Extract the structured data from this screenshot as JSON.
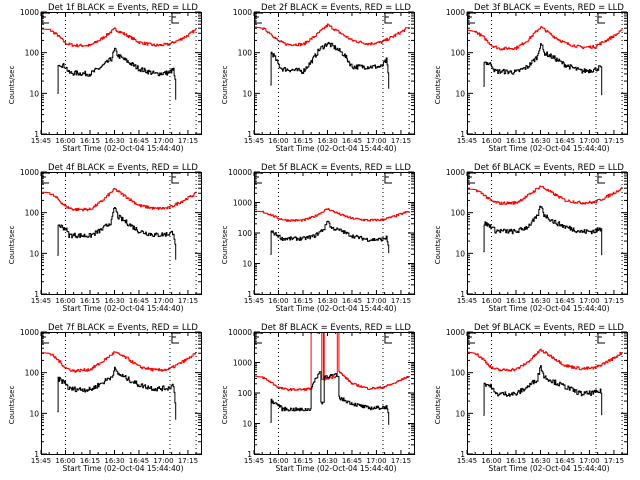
{
  "figure": {
    "xlabel": "Start Time (02-Oct-04 15:44:40)",
    "ylabel": "Counts/sec"
  },
  "chart_data": [
    {
      "type": "line",
      "title": "Det 1f BLACK = Events, RED = LLD",
      "xlabel": "Start Time (02-Oct-04 15:44:40)",
      "ylabel": "Counts/sec",
      "xlim": [
        "15:45",
        "17:23"
      ],
      "ylim": [
        1,
        1000
      ],
      "yscale": "log",
      "xticks": [
        "15:45",
        "16:00",
        "16:15",
        "16:30",
        "16:45",
        "17:00",
        "17:15"
      ],
      "yticks": [
        "1",
        "10",
        "100",
        "1000"
      ],
      "dotted_vlines": [
        "16:00",
        "17:04",
        "17:20"
      ],
      "series": [
        {
          "name": "LLD",
          "color": "#ff0000",
          "x": [
            "15:45",
            "15:50",
            "15:55",
            "16:00",
            "16:05",
            "16:15",
            "16:22",
            "16:30",
            "16:38",
            "16:45",
            "16:55",
            "17:03",
            "17:10",
            "17:15",
            "17:20"
          ],
          "values": [
            380,
            370,
            270,
            170,
            150,
            150,
            220,
            380,
            260,
            180,
            150,
            160,
            210,
            270,
            370
          ]
        },
        {
          "name": "Events",
          "color": "#000000",
          "x": [
            "15:55",
            "15:55.5",
            "16:00",
            "16:02",
            "16:15",
            "16:22",
            "16:28",
            "16:30",
            "16:32",
            "16:38",
            "16:45",
            "16:55",
            "17:03",
            "17:06",
            "17:07",
            "17:07.5"
          ],
          "values": [
            10,
            55,
            45,
            32,
            30,
            45,
            70,
            120,
            85,
            60,
            40,
            30,
            32,
            38,
            20,
            7
          ]
        }
      ]
    },
    {
      "type": "line",
      "title": "Det 2f BLACK = Events, RED = LLD",
      "xlabel": "Start Time (02-Oct-04 15:44:40)",
      "ylabel": "Counts/sec",
      "xlim": [
        "15:45",
        "17:23"
      ],
      "ylim": [
        1,
        1000
      ],
      "yscale": "log",
      "xticks": [
        "15:45",
        "16:00",
        "16:15",
        "16:30",
        "16:45",
        "17:00",
        "17:15"
      ],
      "yticks": [
        "1",
        "10",
        "100",
        "1000"
      ],
      "dotted_vlines": [
        "16:00",
        "17:04",
        "17:20"
      ],
      "series": [
        {
          "name": "LLD",
          "color": "#ff0000",
          "x": [
            "15:45",
            "15:50",
            "15:55",
            "16:00",
            "16:05",
            "16:15",
            "16:22",
            "16:30",
            "16:38",
            "16:45",
            "16:55",
            "17:03",
            "17:10",
            "17:15",
            "17:20"
          ],
          "values": [
            430,
            400,
            300,
            190,
            160,
            160,
            250,
            480,
            300,
            200,
            165,
            180,
            250,
            320,
            430
          ]
        },
        {
          "name": "Events",
          "color": "#000000",
          "x": [
            "15:55",
            "15:55.5",
            "15:57",
            "16:00",
            "16:02",
            "16:15",
            "16:20",
            "16:25",
            "16:30",
            "16:35",
            "16:40",
            "16:45",
            "16:55",
            "17:03",
            "17:06",
            "17:07",
            "17:07.5"
          ],
          "values": [
            16,
            100,
            85,
            50,
            40,
            35,
            60,
            120,
            170,
            130,
            90,
            45,
            45,
            45,
            65,
            30,
            13
          ]
        }
      ]
    },
    {
      "type": "line",
      "title": "Det 3f BLACK = Events, RED = LLD",
      "xlabel": "Start Time (02-Oct-04 15:44:40)",
      "ylabel": "Counts/sec",
      "xlim": [
        "15:45",
        "17:23"
      ],
      "ylim": [
        1,
        1000
      ],
      "yscale": "log",
      "xticks": [
        "15:45",
        "16:00",
        "16:15",
        "16:30",
        "16:45",
        "17:00",
        "17:15"
      ],
      "yticks": [
        "1",
        "10",
        "100",
        "1000"
      ],
      "dotted_vlines": [
        "16:00",
        "17:04",
        "17:20"
      ],
      "series": [
        {
          "name": "LLD",
          "color": "#ff0000",
          "x": [
            "15:45",
            "15:50",
            "15:55",
            "16:00",
            "16:05",
            "16:15",
            "16:22",
            "16:30",
            "16:38",
            "16:45",
            "16:55",
            "17:03",
            "17:10",
            "17:15",
            "17:20"
          ],
          "values": [
            360,
            330,
            240,
            150,
            125,
            130,
            200,
            430,
            250,
            170,
            135,
            140,
            200,
            260,
            350
          ]
        },
        {
          "name": "Events",
          "color": "#000000",
          "x": [
            "15:55",
            "15:55.5",
            "16:00",
            "16:02",
            "16:15",
            "16:22",
            "16:28",
            "16:30",
            "16:32",
            "16:38",
            "16:45",
            "16:55",
            "17:03",
            "17:07",
            "17:07.5"
          ],
          "values": [
            15,
            60,
            50,
            35,
            33,
            45,
            80,
            180,
            100,
            75,
            50,
            35,
            38,
            45,
            9
          ]
        }
      ]
    },
    {
      "type": "line",
      "title": "Det 4f BLACK = Events, RED = LLD",
      "xlabel": "Start Time (02-Oct-04 15:44:40)",
      "ylabel": "Counts/sec",
      "xlim": [
        "15:45",
        "17:23"
      ],
      "ylim": [
        1,
        1000
      ],
      "yscale": "log",
      "xticks": [
        "15:45",
        "16:00",
        "16:15",
        "16:30",
        "16:45",
        "17:00",
        "17:15"
      ],
      "yticks": [
        "1",
        "10",
        "100",
        "1000"
      ],
      "dotted_vlines": [
        "16:00",
        "17:04",
        "17:20"
      ],
      "series": [
        {
          "name": "LLD",
          "color": "#ff0000",
          "x": [
            "15:45",
            "15:50",
            "15:55",
            "16:00",
            "16:05",
            "16:15",
            "16:22",
            "16:30",
            "16:38",
            "16:45",
            "16:55",
            "17:03",
            "17:10",
            "17:15",
            "17:20"
          ],
          "values": [
            320,
            310,
            220,
            140,
            120,
            120,
            190,
            380,
            230,
            150,
            125,
            130,
            180,
            230,
            300
          ]
        },
        {
          "name": "Events",
          "color": "#000000",
          "x": [
            "15:55",
            "15:55.5",
            "16:00",
            "16:02",
            "16:15",
            "16:22",
            "16:28",
            "16:30",
            "16:32",
            "16:38",
            "16:45",
            "16:55",
            "17:03",
            "17:06",
            "17:07",
            "17:07.5"
          ],
          "values": [
            9,
            50,
            40,
            28,
            27,
            38,
            60,
            140,
            80,
            55,
            35,
            28,
            30,
            33,
            18,
            7
          ]
        }
      ]
    },
    {
      "type": "line",
      "title": "Det 5f BLACK = Events, RED = LLD",
      "xlabel": "Start Time (02-Oct-04 15:44:40)",
      "ylabel": "Counts/sec",
      "xlim": [
        "15:45",
        "17:23"
      ],
      "ylim": [
        1,
        10000
      ],
      "yscale": "log",
      "xticks": [
        "15:45",
        "16:00",
        "16:15",
        "16:30",
        "16:45",
        "17:00",
        "17:15"
      ],
      "yticks": [
        "1",
        "10",
        "100",
        "1000",
        "10000"
      ],
      "dotted_vlines": [
        "16:00",
        "17:04",
        "17:20"
      ],
      "series": [
        {
          "name": "LLD",
          "color": "#ff0000",
          "x": [
            "15:45",
            "15:50",
            "15:55",
            "16:00",
            "16:05",
            "16:15",
            "16:22",
            "16:30",
            "16:38",
            "16:45",
            "16:55",
            "17:03",
            "17:10",
            "17:15",
            "17:20"
          ],
          "values": [
            520,
            500,
            400,
            300,
            260,
            260,
            350,
            620,
            400,
            300,
            260,
            270,
            340,
            420,
            520
          ]
        },
        {
          "name": "Events",
          "color": "#000000",
          "x": [
            "15:55",
            "15:55.5",
            "16:00",
            "16:02",
            "16:15",
            "16:22",
            "16:28",
            "16:30",
            "16:32",
            "16:38",
            "16:45",
            "16:55",
            "17:03",
            "17:06",
            "17:07",
            "17:07.5"
          ],
          "values": [
            20,
            110,
            80,
            65,
            65,
            80,
            140,
            270,
            150,
            120,
            80,
            60,
            62,
            70,
            40,
            22
          ]
        }
      ]
    },
    {
      "type": "line",
      "title": "Det 6f BLACK = Events, RED = LLD",
      "xlabel": "Start Time (02-Oct-04 15:44:40)",
      "ylabel": "Counts/sec",
      "xlim": [
        "15:45",
        "17:23"
      ],
      "ylim": [
        1,
        1000
      ],
      "yscale": "log",
      "xticks": [
        "15:45",
        "16:00",
        "16:15",
        "16:30",
        "16:45",
        "17:00",
        "17:15"
      ],
      "yticks": [
        "1",
        "10",
        "100",
        "1000"
      ],
      "dotted_vlines": [
        "16:00",
        "17:04",
        "17:20"
      ],
      "series": [
        {
          "name": "LLD",
          "color": "#ff0000",
          "x": [
            "15:45",
            "15:50",
            "15:55",
            "16:00",
            "16:05",
            "16:15",
            "16:22",
            "16:30",
            "16:38",
            "16:45",
            "16:55",
            "17:03",
            "17:10",
            "17:15",
            "17:20"
          ],
          "values": [
            380,
            370,
            280,
            190,
            170,
            175,
            260,
            450,
            290,
            200,
            175,
            180,
            240,
            310,
            400
          ]
        },
        {
          "name": "Events",
          "color": "#000000",
          "x": [
            "15:55",
            "15:55.5",
            "16:00",
            "16:02",
            "16:15",
            "16:22",
            "16:28",
            "16:30",
            "16:32",
            "16:38",
            "16:45",
            "16:55",
            "17:03",
            "17:07",
            "17:07.5"
          ],
          "values": [
            11,
            55,
            45,
            36,
            34,
            45,
            80,
            150,
            90,
            60,
            45,
            34,
            35,
            40,
            9
          ]
        }
      ]
    },
    {
      "type": "line",
      "title": "Det 7f BLACK = Events, RED = LLD",
      "xlabel": "Start Time (02-Oct-04 15:44:40)",
      "ylabel": "Counts/sec",
      "xlim": [
        "15:45",
        "17:23"
      ],
      "ylim": [
        1,
        1000
      ],
      "yscale": "log",
      "xticks": [
        "15:45",
        "16:00",
        "16:15",
        "16:30",
        "16:45",
        "17:00",
        "17:15"
      ],
      "yticks": [
        "1",
        "10",
        "100",
        "1000"
      ],
      "dotted_vlines": [
        "16:00",
        "17:04",
        "17:20"
      ],
      "series": [
        {
          "name": "LLD",
          "color": "#ff0000",
          "x": [
            "15:45",
            "15:50",
            "15:55",
            "16:00",
            "16:05",
            "16:15",
            "16:22",
            "16:30",
            "16:38",
            "16:45",
            "16:55",
            "17:03",
            "17:10",
            "17:15",
            "17:20"
          ],
          "values": [
            310,
            300,
            210,
            130,
            110,
            120,
            180,
            320,
            220,
            140,
            115,
            120,
            170,
            220,
            300
          ]
        },
        {
          "name": "Events",
          "color": "#000000",
          "x": [
            "15:55",
            "15:55.5",
            "16:00",
            "16:02",
            "16:15",
            "16:22",
            "16:28",
            "16:30",
            "16:32",
            "16:38",
            "16:45",
            "16:55",
            "17:03",
            "17:06",
            "17:07",
            "17:07.5"
          ],
          "values": [
            11,
            70,
            55,
            40,
            38,
            55,
            80,
            120,
            95,
            70,
            50,
            40,
            42,
            50,
            20,
            7
          ]
        }
      ]
    },
    {
      "type": "line",
      "title": "Det 8f BLACK = Events, RED = LLD",
      "xlabel": "Start Time (02-Oct-04 15:44:40)",
      "ylabel": "Counts/sec",
      "xlim": [
        "15:45",
        "17:23"
      ],
      "ylim": [
        1,
        10000
      ],
      "yscale": "log",
      "xticks": [
        "15:45",
        "16:00",
        "16:15",
        "16:30",
        "16:45",
        "17:00",
        "17:15"
      ],
      "yticks": [
        "1",
        "10",
        "100",
        "1000",
        "10000"
      ],
      "dotted_vlines": [
        "16:00",
        "17:04",
        "17:20"
      ],
      "series": [
        {
          "name": "LLD",
          "color": "#ff0000",
          "x": [
            "15:45",
            "15:50",
            "15:55",
            "16:00",
            "16:05",
            "16:15",
            "16:19.5",
            "16:20",
            "16:26",
            "16:26.5",
            "16:27.5",
            "16:28",
            "16:35",
            "16:36",
            "16:37",
            "16:45",
            "16:55",
            "17:03",
            "17:10",
            "17:15",
            "17:20"
          ],
          "values": [
            360,
            330,
            230,
            150,
            130,
            130,
            140,
            10000,
            10000,
            280,
            10000,
            280,
            350,
            10000,
            500,
            200,
            140,
            150,
            200,
            270,
            360
          ]
        },
        {
          "name": "Events",
          "color": "#000000",
          "x": [
            "15:55",
            "15:55.5",
            "16:00",
            "16:02",
            "16:15",
            "16:19.5",
            "16:20",
            "16:25",
            "16:26",
            "16:27",
            "16:28",
            "16:35",
            "16:36",
            "16:37",
            "16:45",
            "16:55",
            "17:03",
            "17:06",
            "17:07",
            "17:07.5"
          ],
          "values": [
            11,
            55,
            40,
            30,
            28,
            30,
            150,
            500,
            50,
            50,
            350,
            380,
            350,
            70,
            45,
            32,
            33,
            35,
            20,
            9
          ]
        }
      ]
    },
    {
      "type": "line",
      "title": "Det 9f BLACK = Events, RED = LLD",
      "xlabel": "Start Time (02-Oct-04 15:44:40)",
      "ylabel": "Counts/sec",
      "xlim": [
        "15:45",
        "17:23"
      ],
      "ylim": [
        1,
        1000
      ],
      "yscale": "log",
      "xticks": [
        "15:45",
        "16:00",
        "16:15",
        "16:30",
        "16:45",
        "17:00",
        "17:15"
      ],
      "yticks": [
        "1",
        "10",
        "100",
        "1000"
      ],
      "dotted_vlines": [
        "16:00",
        "17:04",
        "17:20"
      ],
      "series": [
        {
          "name": "LLD",
          "color": "#ff0000",
          "x": [
            "15:45",
            "15:50",
            "15:55",
            "16:00",
            "16:05",
            "16:15",
            "16:22",
            "16:30",
            "16:38",
            "16:45",
            "16:55",
            "17:03",
            "17:10",
            "17:15",
            "17:20"
          ],
          "values": [
            320,
            300,
            210,
            130,
            115,
            120,
            180,
            360,
            230,
            150,
            125,
            130,
            180,
            230,
            320
          ]
        },
        {
          "name": "Events",
          "color": "#000000",
          "x": [
            "15:55",
            "15:55.5",
            "16:00",
            "16:02",
            "16:15",
            "16:22",
            "16:28",
            "16:30",
            "16:32",
            "16:38",
            "16:45",
            "16:55",
            "17:03",
            "17:07",
            "17:07.5"
          ],
          "values": [
            9,
            55,
            45,
            30,
            30,
            45,
            70,
            150,
            80,
            60,
            45,
            30,
            32,
            35,
            9
          ]
        }
      ]
    }
  ]
}
